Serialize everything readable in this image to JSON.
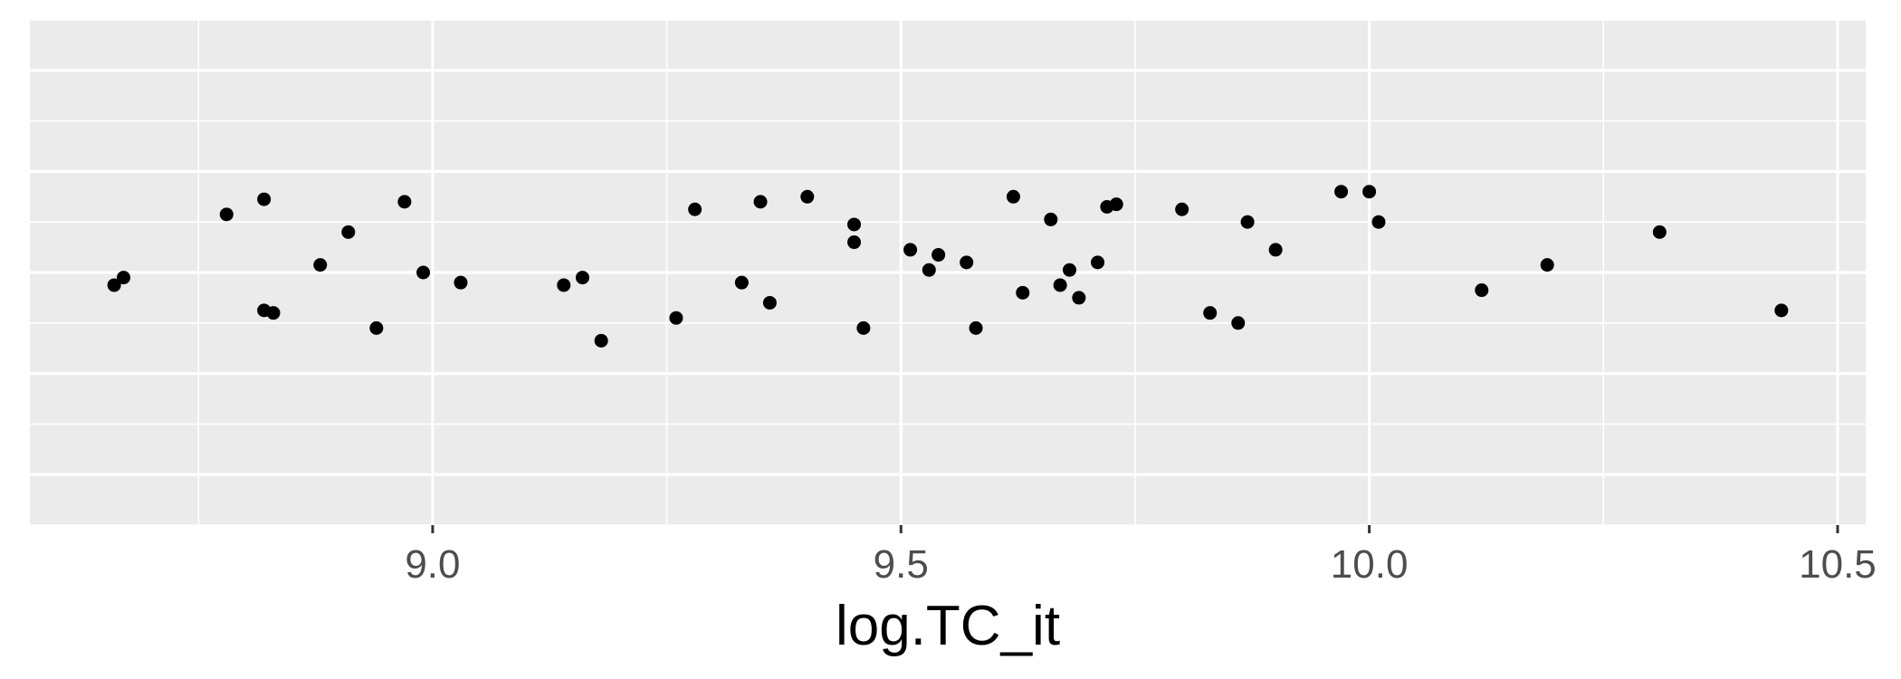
{
  "chart_data": {
    "type": "scatter",
    "xlabel": "log.TC_it",
    "ylabel": "",
    "xlim": [
      8.57,
      10.53
    ],
    "ylim": [
      -1.0,
      1.0
    ],
    "x_ticks": [
      {
        "value": 9.0,
        "label": "9.0"
      },
      {
        "value": 9.5,
        "label": "9.5"
      },
      {
        "value": 10.0,
        "label": "10.0"
      },
      {
        "value": 10.5,
        "label": "10.5"
      }
    ],
    "x_minor_ticks": [
      8.75,
      9.25,
      9.75,
      10.25
    ],
    "y_major_gridlines": [
      -0.8,
      -0.4,
      0.0,
      0.4,
      0.8
    ],
    "y_minor_gridlines": [
      -1.0,
      -0.6,
      -0.2,
      0.2,
      0.6,
      1.0
    ],
    "y_tick_labels_shown": false,
    "grid": true,
    "panel_background": "#ebebeb",
    "gridline_color": "#ffffff",
    "point_color": "#000000",
    "points": [
      {
        "x": 8.66,
        "y": -0.05
      },
      {
        "x": 8.67,
        "y": -0.02
      },
      {
        "x": 8.78,
        "y": 0.23
      },
      {
        "x": 8.82,
        "y": 0.29
      },
      {
        "x": 8.82,
        "y": -0.15
      },
      {
        "x": 8.83,
        "y": -0.16
      },
      {
        "x": 8.88,
        "y": 0.03
      },
      {
        "x": 8.91,
        "y": 0.16
      },
      {
        "x": 8.94,
        "y": -0.22
      },
      {
        "x": 8.97,
        "y": 0.28
      },
      {
        "x": 8.99,
        "y": 0.0
      },
      {
        "x": 9.03,
        "y": -0.04
      },
      {
        "x": 9.14,
        "y": -0.05
      },
      {
        "x": 9.16,
        "y": -0.02
      },
      {
        "x": 9.18,
        "y": -0.27
      },
      {
        "x": 9.26,
        "y": -0.18
      },
      {
        "x": 9.28,
        "y": 0.25
      },
      {
        "x": 9.33,
        "y": -0.04
      },
      {
        "x": 9.35,
        "y": 0.28
      },
      {
        "x": 9.36,
        "y": -0.12
      },
      {
        "x": 9.4,
        "y": 0.3
      },
      {
        "x": 9.45,
        "y": 0.19
      },
      {
        "x": 9.45,
        "y": 0.12
      },
      {
        "x": 9.46,
        "y": -0.22
      },
      {
        "x": 9.51,
        "y": 0.09
      },
      {
        "x": 9.53,
        "y": 0.01
      },
      {
        "x": 9.54,
        "y": 0.07
      },
      {
        "x": 9.58,
        "y": -0.22
      },
      {
        "x": 9.57,
        "y": 0.04
      },
      {
        "x": 9.62,
        "y": 0.3
      },
      {
        "x": 9.63,
        "y": -0.08
      },
      {
        "x": 9.66,
        "y": 0.21
      },
      {
        "x": 9.67,
        "y": -0.05
      },
      {
        "x": 9.68,
        "y": 0.01
      },
      {
        "x": 9.69,
        "y": -0.1
      },
      {
        "x": 9.71,
        "y": 0.04
      },
      {
        "x": 9.72,
        "y": 0.26
      },
      {
        "x": 9.73,
        "y": 0.27
      },
      {
        "x": 9.8,
        "y": 0.25
      },
      {
        "x": 9.83,
        "y": -0.16
      },
      {
        "x": 9.86,
        "y": -0.2
      },
      {
        "x": 9.87,
        "y": 0.2
      },
      {
        "x": 9.9,
        "y": 0.09
      },
      {
        "x": 9.97,
        "y": 0.32
      },
      {
        "x": 10.0,
        "y": 0.32
      },
      {
        "x": 10.01,
        "y": 0.2
      },
      {
        "x": 10.12,
        "y": -0.07
      },
      {
        "x": 10.19,
        "y": 0.03
      },
      {
        "x": 10.31,
        "y": 0.16
      },
      {
        "x": 10.44,
        "y": -0.15
      }
    ]
  }
}
